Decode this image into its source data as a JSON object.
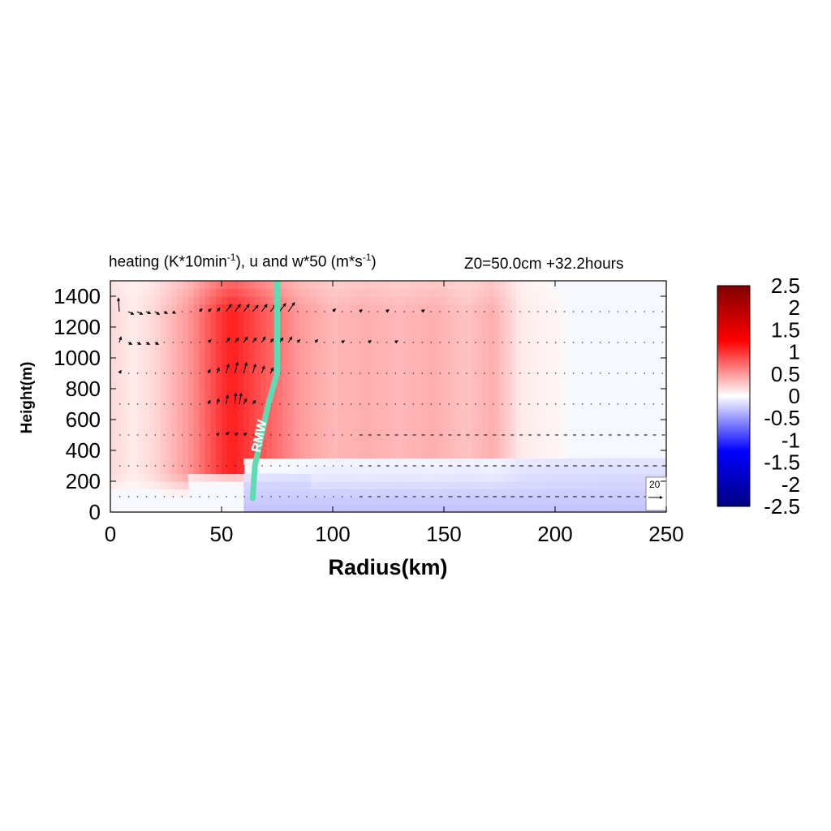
{
  "title": {
    "prefix": "heating (K*10min",
    "sup1": "-1",
    "middle": "), u and w*50 (m*s",
    "sup2": "-1",
    "suffix": ")",
    "right": "Z0=50.0cm  +32.2hours"
  },
  "chart_data": {
    "type": "heatmap",
    "xlabel": "Radius(km)",
    "ylabel": "Height(m)",
    "xlim": [
      0,
      250
    ],
    "ylim": [
      0,
      1500
    ],
    "xticks": [
      0,
      50,
      100,
      150,
      200,
      250
    ],
    "yticks": [
      0,
      200,
      400,
      600,
      800,
      1000,
      1200,
      1400
    ],
    "colorbar": {
      "range": [
        -2.5,
        2.5
      ],
      "ticks": [
        "2.5",
        "2",
        "1.5",
        "1",
        "0.5",
        "0",
        "-0.5",
        "-1",
        "-1.5",
        "-2",
        "-2.5"
      ],
      "colors": {
        "max": "#800000",
        "pos": "#ff0000",
        "zero": "#ffffff",
        "neg": "#0000ff",
        "min": "#000080"
      }
    },
    "heating_field": {
      "description_radius_profile": [
        {
          "r": 0,
          "value": 0.2
        },
        {
          "r": 10,
          "value": 0.1
        },
        {
          "r": 20,
          "value": 0.2
        },
        {
          "r": 35,
          "value": 0.5
        },
        {
          "r": 50,
          "value": 1.0
        },
        {
          "r": 55,
          "value": 1.1
        },
        {
          "r": 65,
          "value": 0.9
        },
        {
          "r": 75,
          "value": 0.7
        },
        {
          "r": 85,
          "value": 0.5
        },
        {
          "r": 100,
          "value": 0.35
        },
        {
          "r": 115,
          "value": 0.4
        },
        {
          "r": 130,
          "value": 0.35
        },
        {
          "r": 145,
          "value": 0.4
        },
        {
          "r": 160,
          "value": 0.3
        },
        {
          "r": 172,
          "value": 0.4
        },
        {
          "r": 185,
          "value": 0.1
        },
        {
          "r": 200,
          "value": 0.05
        },
        {
          "r": 220,
          "value": 0.0
        },
        {
          "r": 250,
          "value": 0.0
        }
      ],
      "negative_layer": {
        "r_min": 60,
        "r_max": 250,
        "z_max": 350,
        "value": -0.3
      }
    },
    "rmw": {
      "label": "RMW",
      "color": "#5ddcb4",
      "points": [
        [
          64,
          90
        ],
        [
          65,
          300
        ],
        [
          68,
          500
        ],
        [
          71,
          700
        ],
        [
          75,
          900
        ],
        [
          75,
          1200
        ],
        [
          75,
          1500
        ]
      ]
    },
    "vector_levels_m": [
      100,
      300,
      500,
      700,
      900,
      1100,
      1300
    ],
    "vector_reference": {
      "label": "20",
      "value": 20
    },
    "vectors": [
      {
        "z": 1300,
        "r": 4,
        "u": -1,
        "w": 15
      },
      {
        "z": 1300,
        "r": 8,
        "u": 6,
        "w": -3
      },
      {
        "z": 1300,
        "r": 12,
        "u": 6,
        "w": -3
      },
      {
        "z": 1300,
        "r": 16,
        "u": 5,
        "w": -2
      },
      {
        "z": 1300,
        "r": 20,
        "u": 5,
        "w": -3
      },
      {
        "z": 1300,
        "r": 24,
        "u": 4,
        "w": -2
      },
      {
        "z": 1300,
        "r": 28,
        "u": 3,
        "w": -2
      },
      {
        "z": 1300,
        "r": 40,
        "u": 3,
        "w": 3
      },
      {
        "z": 1300,
        "r": 44,
        "u": 3,
        "w": 3
      },
      {
        "z": 1300,
        "r": 48,
        "u": 3,
        "w": 4
      },
      {
        "z": 1300,
        "r": 52,
        "u": 6,
        "w": 8
      },
      {
        "z": 1300,
        "r": 56,
        "u": 6,
        "w": 8
      },
      {
        "z": 1300,
        "r": 60,
        "u": 6,
        "w": 8
      },
      {
        "z": 1300,
        "r": 64,
        "u": 6,
        "w": 7
      },
      {
        "z": 1300,
        "r": 68,
        "u": 6,
        "w": 8
      },
      {
        "z": 1300,
        "r": 72,
        "u": 6,
        "w": 8
      },
      {
        "z": 1300,
        "r": 76,
        "u": 7,
        "w": 9
      },
      {
        "z": 1300,
        "r": 80,
        "u": 7,
        "w": 10
      },
      {
        "z": 1300,
        "r": 100,
        "u": 3,
        "w": 3
      },
      {
        "z": 1300,
        "r": 112,
        "u": 3,
        "w": 2
      },
      {
        "z": 1300,
        "r": 124,
        "u": 3,
        "w": 2
      },
      {
        "z": 1300,
        "r": 140,
        "u": 3,
        "w": 2
      },
      {
        "z": 1100,
        "r": 4,
        "u": 2,
        "w": 6
      },
      {
        "z": 1100,
        "r": 8,
        "u": 4,
        "w": -2
      },
      {
        "z": 1100,
        "r": 12,
        "u": 4,
        "w": -2
      },
      {
        "z": 1100,
        "r": 16,
        "u": 4,
        "w": -2
      },
      {
        "z": 1100,
        "r": 20,
        "u": 4,
        "w": -2
      },
      {
        "z": 1100,
        "r": 44,
        "u": 3,
        "w": 3
      },
      {
        "z": 1100,
        "r": 52,
        "u": 4,
        "w": 5
      },
      {
        "z": 1100,
        "r": 56,
        "u": 4,
        "w": 5
      },
      {
        "z": 1100,
        "r": 60,
        "u": 4,
        "w": 6
      },
      {
        "z": 1100,
        "r": 64,
        "u": 4,
        "w": 5
      },
      {
        "z": 1100,
        "r": 68,
        "u": 4,
        "w": 6
      },
      {
        "z": 1100,
        "r": 72,
        "u": 3,
        "w": 4
      },
      {
        "z": 1100,
        "r": 76,
        "u": 4,
        "w": 5
      },
      {
        "z": 1100,
        "r": 80,
        "u": 4,
        "w": 6
      },
      {
        "z": 1100,
        "r": 84,
        "u": 3,
        "w": 3
      },
      {
        "z": 1100,
        "r": 92,
        "u": 3,
        "w": 3
      },
      {
        "z": 1100,
        "r": 104,
        "u": 3,
        "w": 2
      },
      {
        "z": 1100,
        "r": 116,
        "u": 3,
        "w": 2
      },
      {
        "z": 1100,
        "r": 128,
        "u": 3,
        "w": 2
      },
      {
        "z": 900,
        "r": 4,
        "u": 2,
        "w": 3
      },
      {
        "z": 900,
        "r": 44,
        "u": 2,
        "w": 4
      },
      {
        "z": 900,
        "r": 48,
        "u": 2,
        "w": 6
      },
      {
        "z": 900,
        "r": 52,
        "u": 3,
        "w": 10
      },
      {
        "z": 900,
        "r": 56,
        "u": 3,
        "w": 12
      },
      {
        "z": 900,
        "r": 60,
        "u": 3,
        "w": 12
      },
      {
        "z": 900,
        "r": 64,
        "u": 3,
        "w": 10
      },
      {
        "z": 900,
        "r": 68,
        "u": 3,
        "w": 8
      },
      {
        "z": 900,
        "r": 72,
        "u": 3,
        "w": 6
      },
      {
        "z": 700,
        "r": 44,
        "u": 2,
        "w": 4
      },
      {
        "z": 700,
        "r": 48,
        "u": 2,
        "w": 6
      },
      {
        "z": 700,
        "r": 52,
        "u": 2,
        "w": 10
      },
      {
        "z": 700,
        "r": 56,
        "u": 1,
        "w": 12
      },
      {
        "z": 700,
        "r": 58,
        "u": 2,
        "w": 12
      },
      {
        "z": 700,
        "r": 60,
        "u": 3,
        "w": 6
      },
      {
        "z": 700,
        "r": 64,
        "u": 3,
        "w": 4
      },
      {
        "z": 500,
        "r": 48,
        "u": 2,
        "w": 2
      },
      {
        "z": 500,
        "r": 52,
        "u": 3,
        "w": 3
      },
      {
        "z": 500,
        "r": 56,
        "u": 3,
        "w": 2
      },
      {
        "z": 500,
        "r": 60,
        "u": 3,
        "w": 2
      }
    ]
  }
}
